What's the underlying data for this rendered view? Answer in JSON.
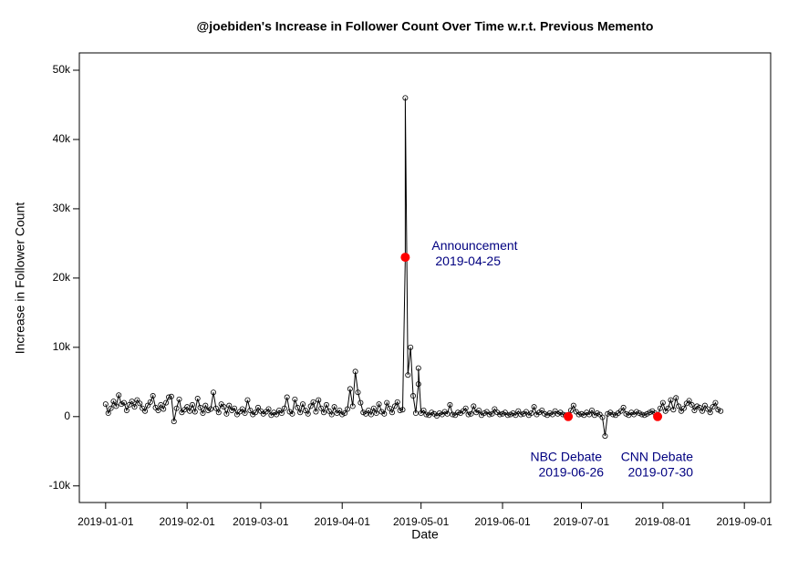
{
  "chart_data": {
    "type": "line",
    "title": "@joebiden's Increase in Follower Count Over Time w.r.t. Previous Memento",
    "x_label": "Date",
    "y_label": "Increase in Follower Count",
    "xlim": [
      "2018-12-22",
      "2019-09-11"
    ],
    "xticks": [
      "2019-01-01",
      "2019-02-01",
      "2019-03-01",
      "2019-04-01",
      "2019-05-01",
      "2019-06-01",
      "2019-07-01",
      "2019-08-01",
      "2019-09-01"
    ],
    "ylim": [
      -12400,
      52500
    ],
    "yticks": [
      {
        "value": -10000,
        "label": "-10k"
      },
      {
        "value": 0,
        "label": "0"
      },
      {
        "value": 10000,
        "label": "10k"
      },
      {
        "value": 20000,
        "label": "20k"
      },
      {
        "value": 30000,
        "label": "30k"
      },
      {
        "value": 40000,
        "label": "40k"
      },
      {
        "value": 50000,
        "label": "50k"
      }
    ],
    "color": "#000000",
    "highlight_color": "#ff0000",
    "annotation_color": "#000080",
    "x": [
      "2019-01-01",
      "2019-01-02",
      "2019-01-03",
      "2019-01-04",
      "2019-01-05",
      "2019-01-06",
      "2019-01-07",
      "2019-01-08",
      "2019-01-09",
      "2019-01-10",
      "2019-01-11",
      "2019-01-12",
      "2019-01-13",
      "2019-01-14",
      "2019-01-15",
      "2019-01-16",
      "2019-01-17",
      "2019-01-18",
      "2019-01-19",
      "2019-01-20",
      "2019-01-21",
      "2019-01-22",
      "2019-01-23",
      "2019-01-24",
      "2019-01-25",
      "2019-01-26",
      "2019-01-27",
      "2019-01-28",
      "2019-01-29",
      "2019-01-30",
      "2019-01-31",
      "2019-02-01",
      "2019-02-02",
      "2019-02-03",
      "2019-02-04",
      "2019-02-05",
      "2019-02-06",
      "2019-02-07",
      "2019-02-08",
      "2019-02-09",
      "2019-02-10",
      "2019-02-11",
      "2019-02-12",
      "2019-02-13",
      "2019-02-14",
      "2019-02-15",
      "2019-02-16",
      "2019-02-17",
      "2019-02-18",
      "2019-02-19",
      "2019-02-20",
      "2019-02-21",
      "2019-02-22",
      "2019-02-23",
      "2019-02-24",
      "2019-02-25",
      "2019-02-26",
      "2019-02-27",
      "2019-02-28",
      "2019-03-01",
      "2019-03-02",
      "2019-03-03",
      "2019-03-04",
      "2019-03-05",
      "2019-03-06",
      "2019-03-07",
      "2019-03-08",
      "2019-03-09",
      "2019-03-10",
      "2019-03-11",
      "2019-03-12",
      "2019-03-13",
      "2019-03-14",
      "2019-03-15",
      "2019-03-16",
      "2019-03-17",
      "2019-03-18",
      "2019-03-19",
      "2019-03-20",
      "2019-03-21",
      "2019-03-22",
      "2019-03-23",
      "2019-03-24",
      "2019-03-25",
      "2019-03-26",
      "2019-03-27",
      "2019-03-28",
      "2019-03-29",
      "2019-03-30",
      "2019-03-31",
      "2019-04-01",
      "2019-04-02",
      "2019-04-03",
      "2019-04-04",
      "2019-04-05",
      "2019-04-06",
      "2019-04-07",
      "2019-04-08",
      "2019-04-09",
      "2019-04-10",
      "2019-04-11",
      "2019-04-12",
      "2019-04-13",
      "2019-04-14",
      "2019-04-15",
      "2019-04-16",
      "2019-04-17",
      "2019-04-18",
      "2019-04-19",
      "2019-04-20",
      "2019-04-21",
      "2019-04-22",
      "2019-04-23",
      "2019-04-24",
      "2019-04-25",
      "2019-04-25",
      "2019-04-26",
      "2019-04-27",
      "2019-04-28",
      "2019-04-29",
      "2019-04-30",
      "2019-04-30",
      "2019-05-01",
      "2019-05-02",
      "2019-05-03",
      "2019-05-04",
      "2019-05-05",
      "2019-05-06",
      "2019-05-07",
      "2019-05-08",
      "2019-05-09",
      "2019-05-10",
      "2019-05-11",
      "2019-05-12",
      "2019-05-13",
      "2019-05-14",
      "2019-05-15",
      "2019-05-16",
      "2019-05-17",
      "2019-05-18",
      "2019-05-19",
      "2019-05-20",
      "2019-05-21",
      "2019-05-22",
      "2019-05-23",
      "2019-05-24",
      "2019-05-25",
      "2019-05-26",
      "2019-05-27",
      "2019-05-28",
      "2019-05-29",
      "2019-05-30",
      "2019-05-31",
      "2019-06-01",
      "2019-06-02",
      "2019-06-03",
      "2019-06-04",
      "2019-06-05",
      "2019-06-06",
      "2019-06-07",
      "2019-06-08",
      "2019-06-09",
      "2019-06-10",
      "2019-06-11",
      "2019-06-12",
      "2019-06-13",
      "2019-06-14",
      "2019-06-15",
      "2019-06-16",
      "2019-06-17",
      "2019-06-18",
      "2019-06-19",
      "2019-06-20",
      "2019-06-21",
      "2019-06-22",
      "2019-06-23",
      "2019-06-24",
      "2019-06-25",
      "2019-06-26",
      "2019-06-27",
      "2019-06-28",
      "2019-06-29",
      "2019-06-30",
      "2019-07-01",
      "2019-07-02",
      "2019-07-03",
      "2019-07-04",
      "2019-07-05",
      "2019-07-06",
      "2019-07-07",
      "2019-07-08",
      "2019-07-09",
      "2019-07-10",
      "2019-07-11",
      "2019-07-12",
      "2019-07-13",
      "2019-07-14",
      "2019-07-15",
      "2019-07-16",
      "2019-07-17",
      "2019-07-18",
      "2019-07-19",
      "2019-07-20",
      "2019-07-21",
      "2019-07-22",
      "2019-07-23",
      "2019-07-24",
      "2019-07-25",
      "2019-07-26",
      "2019-07-27",
      "2019-07-28",
      "2019-07-29",
      "2019-07-30",
      "2019-07-31",
      "2019-08-01",
      "2019-08-02",
      "2019-08-03",
      "2019-08-04",
      "2019-08-05",
      "2019-08-06",
      "2019-08-07",
      "2019-08-08",
      "2019-08-09",
      "2019-08-10",
      "2019-08-11",
      "2019-08-12",
      "2019-08-13",
      "2019-08-14",
      "2019-08-15",
      "2019-08-16",
      "2019-08-17",
      "2019-08-18",
      "2019-08-19",
      "2019-08-20",
      "2019-08-21",
      "2019-08-22",
      "2019-08-23"
    ],
    "values": [
      1800,
      500,
      1200,
      2200,
      1500,
      3100,
      1800,
      2000,
      900,
      1700,
      2200,
      1400,
      2400,
      1900,
      1200,
      800,
      1600,
      2100,
      3000,
      1300,
      900,
      1700,
      1100,
      2000,
      2800,
      2900,
      -700,
      1200,
      2500,
      600,
      1000,
      1400,
      800,
      1700,
      700,
      2600,
      1300,
      500,
      1600,
      900,
      1100,
      3500,
      1200,
      600,
      1800,
      1400,
      400,
      1600,
      900,
      1200,
      300,
      700,
      1100,
      500,
      2400,
      900,
      300,
      600,
      1300,
      800,
      400,
      700,
      1100,
      200,
      600,
      300,
      900,
      500,
      1200,
      2800,
      700,
      400,
      2500,
      1300,
      600,
      1800,
      900,
      400,
      1500,
      2100,
      700,
      2400,
      1200,
      600,
      1700,
      800,
      300,
      1400,
      500,
      900,
      300,
      500,
      1100,
      4000,
      1500,
      6500,
      3500,
      2000,
      600,
      400,
      900,
      300,
      1200,
      500,
      1800,
      700,
      400,
      2000,
      1200,
      600,
      1500,
      2100,
      900,
      1000,
      23000,
      46000,
      6000,
      10000,
      3000,
      500,
      4700,
      7000,
      500,
      900,
      300,
      200,
      600,
      400,
      100,
      500,
      300,
      700,
      400,
      1700,
      300,
      200,
      600,
      500,
      800,
      1200,
      300,
      400,
      1500,
      600,
      900,
      200,
      500,
      700,
      300,
      400,
      1100,
      600,
      300,
      400,
      600,
      200,
      300,
      500,
      200,
      800,
      300,
      400,
      700,
      200,
      500,
      1400,
      300,
      600,
      900,
      400,
      200,
      500,
      300,
      800,
      400,
      600,
      300,
      200,
      0,
      900,
      1600,
      700,
      300,
      400,
      200,
      600,
      300,
      900,
      200,
      500,
      300,
      -100,
      -2800,
      400,
      600,
      300,
      200,
      500,
      800,
      1300,
      400,
      200,
      600,
      300,
      700,
      500,
      300,
      200,
      400,
      600,
      800,
      500,
      0,
      1200,
      2000,
      800,
      1200,
      2400,
      1000,
      2700,
      1500,
      800,
      1200,
      1900,
      2300,
      1700,
      900,
      1500,
      1300,
      800,
      1600,
      1100,
      600,
      1400,
      2000,
      1000,
      800
    ],
    "annotations": [
      {
        "label": "Announcement",
        "x": "2019-04-25",
        "y": 23000
      },
      {
        "label": "NBC Debate",
        "x": "2019-06-26",
        "y": 0
      },
      {
        "label": "CNN Debate",
        "x": "2019-07-30",
        "y": 0
      }
    ]
  }
}
